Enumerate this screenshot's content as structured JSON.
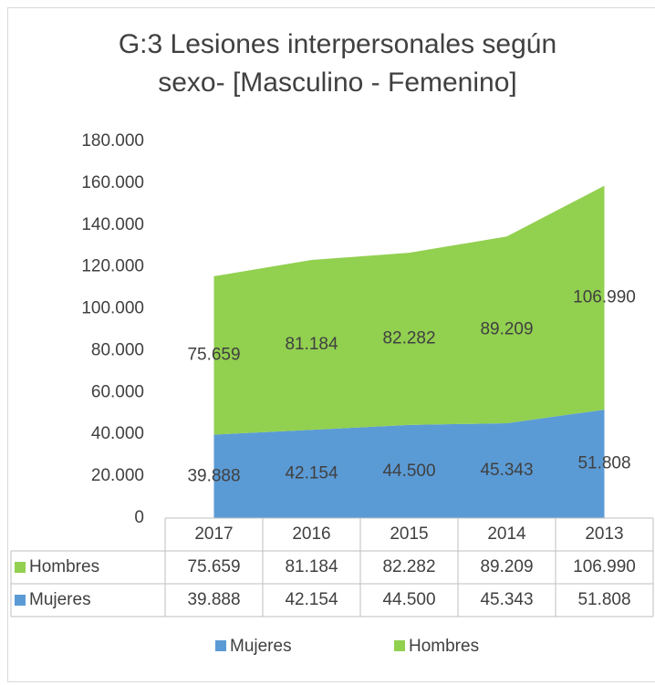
{
  "chart_data": {
    "type": "stacked_area",
    "title": [
      "G:3     Lesiones interpersonales según",
      "sexo- [Masculino - Femenino]"
    ],
    "categories": [
      "2017",
      "2016",
      "2015",
      "2014",
      "2013"
    ],
    "series": [
      {
        "name": "Mujeres",
        "color": "#5b9bd5",
        "values": [
          39888,
          42154,
          44500,
          45343,
          51808
        ],
        "value_labels": [
          "39.888",
          "42.154",
          "44.500",
          "45.343",
          "51.808"
        ]
      },
      {
        "name": "Hombres",
        "color": "#92d050",
        "values": [
          75659,
          81184,
          82282,
          89209,
          106990
        ],
        "value_labels": [
          "75.659",
          "81.184",
          "82.282",
          "89.209",
          "106.990"
        ]
      }
    ],
    "ylim": [
      0,
      180000
    ],
    "yticks": [
      0,
      {
        "value": 20000,
        "label": "20.000"
      },
      {
        "value": 40000,
        "label": "40.000"
      },
      {
        "value": 60000,
        "label": "60.000"
      },
      {
        "value": 80000,
        "label": "80.000"
      },
      {
        "value": 100000,
        "label": "100.000"
      },
      {
        "value": 120000,
        "label": "120.000"
      },
      {
        "value": 140000,
        "label": "140.000"
      },
      {
        "value": 160000,
        "label": "160.000"
      },
      {
        "value": 180000,
        "label": "180.000"
      }
    ],
    "legend": "bottom",
    "grid": false,
    "data_table": true
  }
}
